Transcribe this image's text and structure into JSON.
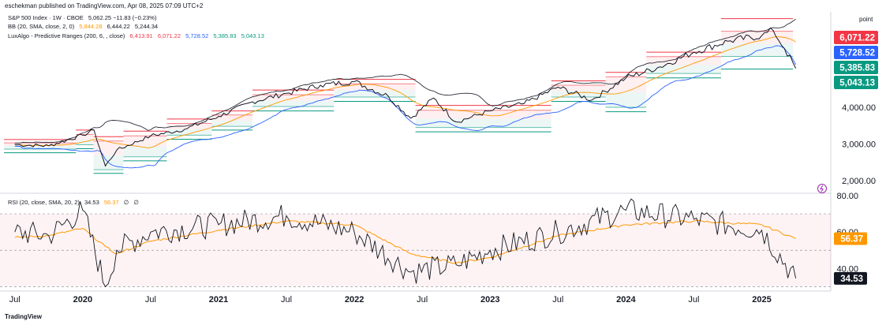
{
  "header": {
    "published": "eschekman published on TradingView.com, Apr 08, 2025 07:09 UTC+2"
  },
  "legend": {
    "line1": {
      "name": "S&P 500 Index · 1W · CBOE",
      "values": "5,062.25  −11.83 (−0.23%)"
    },
    "line2": {
      "name": "BB (20, SMA, close, 2, 0)",
      "v1": "5,844.28",
      "v2": "6,444.22",
      "v3": "5,244.34"
    },
    "line3": {
      "name": "LuxAlgo - Predictive Ranges (200, 6, , close)",
      "v1": "6,413.91",
      "v2": "6,071.22",
      "v3": "5,728.52",
      "v4": "5,385.83",
      "v5": "5,043.13"
    }
  },
  "rsi_legend": {
    "name": "RSI (20, close, SMA, 20, 2)",
    "v1": "34.53",
    "v2": "56.37",
    "v3": "∅",
    "v4": "∅"
  },
  "axis_unit": "point",
  "price_ticks": [
    "4,000.00",
    "3,000.00",
    "2,000.00"
  ],
  "rsi_ticks": [
    "80.00",
    "60.00",
    "40.00"
  ],
  "x_ticks": [
    "Jul",
    "2020",
    "Jul",
    "2021",
    "Jul",
    "2022",
    "Jul",
    "2023",
    "Jul",
    "2024",
    "Jul",
    "2025"
  ],
  "badges": [
    {
      "label": "6,071.22",
      "color": "#f23645"
    },
    {
      "label": "5,728.52",
      "color": "#2962ff"
    },
    {
      "label": "5,385.83",
      "color": "#089981"
    },
    {
      "label": "5,043.13",
      "color": "#089981"
    }
  ],
  "rsi_badges": [
    {
      "label": "56.37",
      "color": "#ff9800"
    },
    {
      "label": "34.53",
      "color": "#131722"
    }
  ],
  "colors": {
    "price": "#131722",
    "bb_basis": "#ff9800",
    "bb_upper": "#2a2e39",
    "bb_lower": "#2962ff",
    "range_red": "#f23645",
    "range_green": "#089981",
    "rsi": "#131722",
    "rsi_ma": "#ff9800"
  },
  "brand": "TradingView",
  "chart_data": [
    {
      "type": "line",
      "title": "S&P 500 Index · 1W · CBOE",
      "x": [
        "2019-07",
        "2019-10",
        "2020-01",
        "2020-02",
        "2020-03",
        "2020-04",
        "2020-07",
        "2020-10",
        "2021-01",
        "2021-04",
        "2021-07",
        "2021-10",
        "2022-01",
        "2022-04",
        "2022-06",
        "2022-08",
        "2022-10",
        "2023-01",
        "2023-04",
        "2023-07",
        "2023-10",
        "2024-01",
        "2024-04",
        "2024-07",
        "2024-10",
        "2025-01",
        "2025-02",
        "2025-03",
        "2025-04"
      ],
      "series": [
        {
          "name": "S&P 500 Index",
          "values": [
            2980,
            2950,
            3240,
            3380,
            2400,
            2830,
            3220,
            3400,
            3750,
            4150,
            4380,
            4600,
            4700,
            4300,
            3700,
            4250,
            3600,
            3900,
            4100,
            4550,
            4200,
            4800,
            5100,
            5500,
            5800,
            5950,
            6100,
            5600,
            5062
          ]
        }
      ],
      "ylim": [
        1700,
        6600
      ]
    },
    {
      "type": "line",
      "title": "RSI (20, close, SMA, 20, 2)",
      "x": [
        "2019-07",
        "2019-10",
        "2020-01",
        "2020-03",
        "2020-04",
        "2020-07",
        "2021-01",
        "2021-07",
        "2022-01",
        "2022-06",
        "2022-10",
        "2023-01",
        "2023-07",
        "2024-01",
        "2024-07",
        "2025-01",
        "2025-04"
      ],
      "series": [
        {
          "name": "RSI",
          "values": [
            60,
            58,
            72,
            30,
            50,
            60,
            64,
            69,
            60,
            38,
            42,
            50,
            60,
            72,
            67,
            61,
            34.53
          ]
        },
        {
          "name": "RSI-based MA",
          "values": [
            57,
            58,
            62,
            52,
            48,
            55,
            61,
            66,
            64,
            48,
            43,
            46,
            58,
            64,
            66,
            64,
            56.37
          ]
        }
      ],
      "ylim": [
        28,
        80
      ]
    }
  ]
}
